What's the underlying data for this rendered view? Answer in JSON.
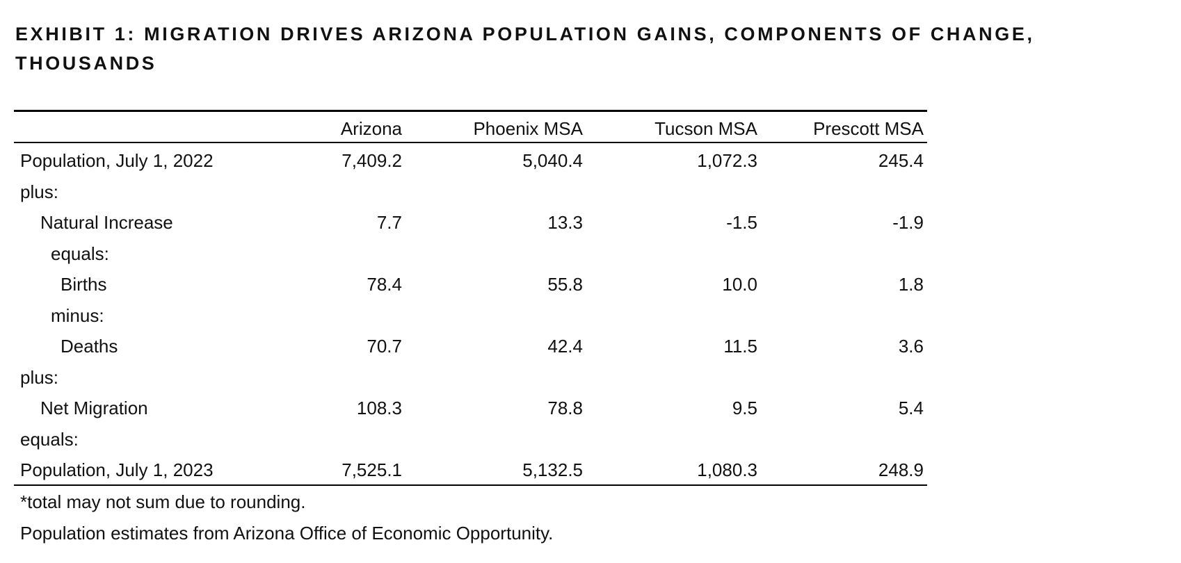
{
  "header": {
    "title": "EXHIBIT 1: MIGRATION DRIVES ARIZONA POPULATION GAINS, COMPONENTS OF CHANGE, THOUSANDS"
  },
  "table": {
    "columns": [
      "Arizona",
      "Phoenix MSA",
      "Tucson MSA",
      "Prescott MSA"
    ],
    "rows": [
      {
        "label": "Population, July 1, 2022",
        "values": [
          "7,409.2",
          "5,040.4",
          "1,072.3",
          "245.4"
        ]
      },
      {
        "label": "plus:"
      },
      {
        "label": "Natural Increase",
        "values": [
          "7.7",
          "13.3",
          "-1.5",
          "-1.9"
        ]
      },
      {
        "label": "equals:"
      },
      {
        "label": "Births",
        "values": [
          "78.4",
          "55.8",
          "10.0",
          "1.8"
        ]
      },
      {
        "label": "minus:"
      },
      {
        "label": "Deaths",
        "values": [
          "70.7",
          "42.4",
          "11.5",
          "3.6"
        ]
      },
      {
        "label": "plus:"
      },
      {
        "label": "Net Migration",
        "values": [
          "108.3",
          "78.8",
          "9.5",
          "5.4"
        ]
      },
      {
        "label": "equals:"
      },
      {
        "label": "Population, July 1, 2023",
        "values": [
          "7,525.1",
          "5,132.5",
          "1,080.3",
          "248.9"
        ]
      }
    ]
  },
  "notes": [
    "*total may not sum due to rounding.",
    "Population estimates from Arizona Office of Economic Opportunity."
  ]
}
